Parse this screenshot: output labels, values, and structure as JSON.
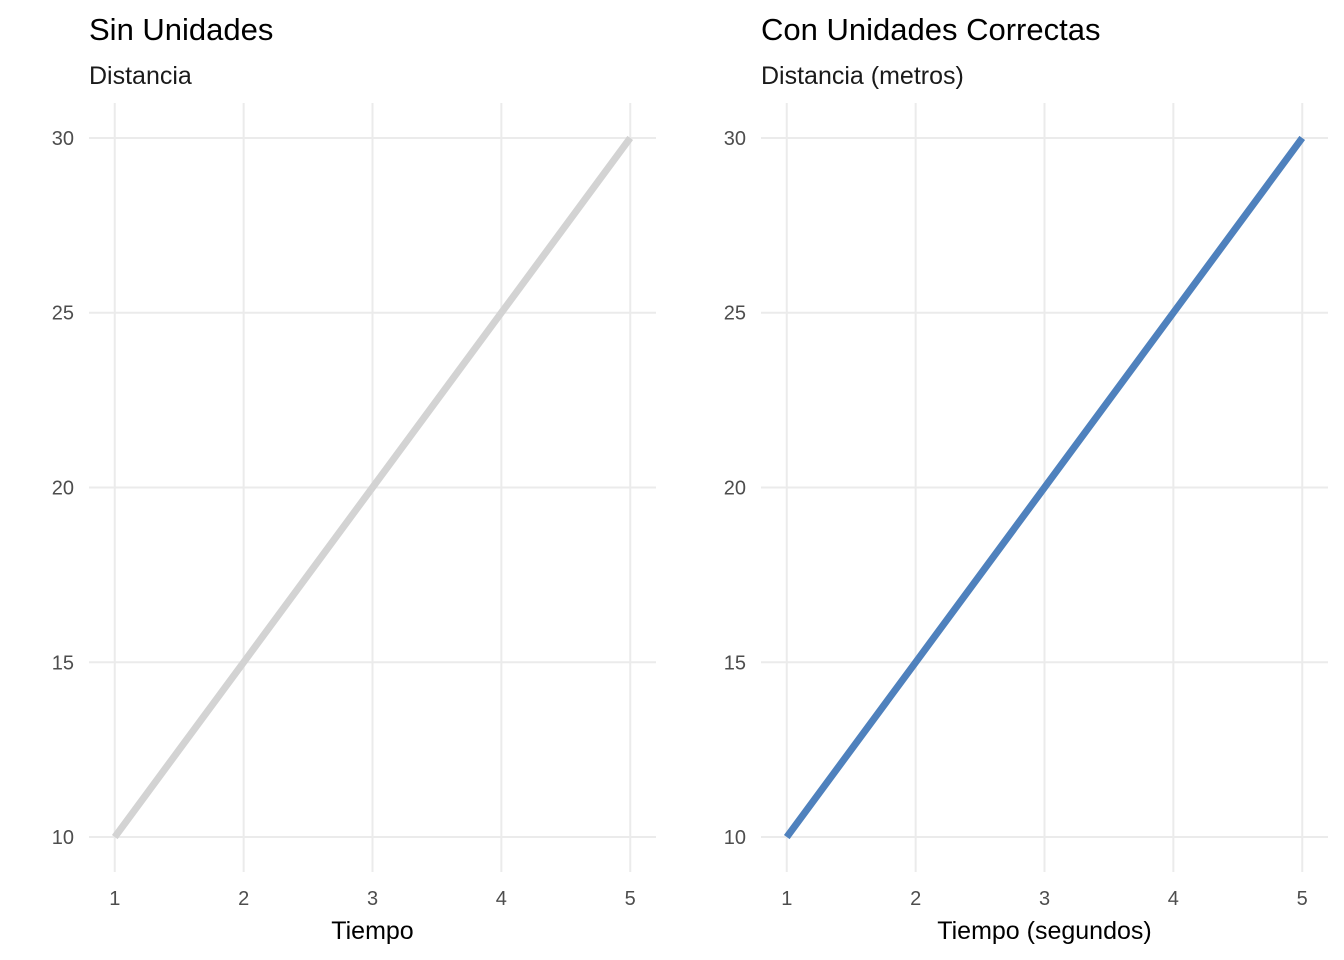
{
  "chart_data": [
    {
      "type": "line",
      "title": "Sin Unidades",
      "subtitle": "Distancia",
      "xlabel": "Tiempo",
      "ylabel": "",
      "x": [
        1,
        2,
        3,
        4,
        5
      ],
      "xticks": [
        "1",
        "2",
        "3",
        "4",
        "5"
      ],
      "yticks": [
        "10",
        "15",
        "20",
        "25",
        "30"
      ],
      "xlim": [
        0.8,
        5.2
      ],
      "ylim": [
        9.0,
        31.0
      ],
      "grid": true,
      "legend": "none",
      "series": [
        {
          "values": [
            10,
            15,
            20,
            25,
            30
          ],
          "color": "#d3d3d3"
        }
      ]
    },
    {
      "type": "line",
      "title": "Con Unidades Correctas",
      "subtitle": "Distancia (metros)",
      "xlabel": "Tiempo (segundos)",
      "ylabel": "",
      "x": [
        1,
        2,
        3,
        4,
        5
      ],
      "xticks": [
        "1",
        "2",
        "3",
        "4",
        "5"
      ],
      "yticks": [
        "10",
        "15",
        "20",
        "25",
        "30"
      ],
      "xlim": [
        0.8,
        5.2
      ],
      "ylim": [
        9.0,
        31.0
      ],
      "grid": true,
      "legend": "none",
      "series": [
        {
          "values": [
            10,
            15,
            20,
            25,
            30
          ],
          "color": "#4f81bd"
        }
      ]
    }
  ]
}
